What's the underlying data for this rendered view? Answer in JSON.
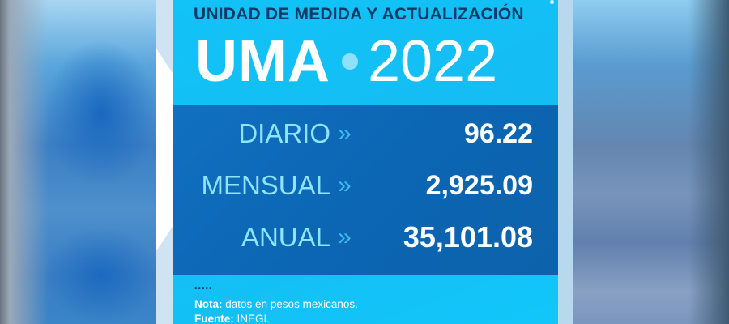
{
  "header": {
    "subtitle": "UNIDAD DE MEDIDA Y ACTUALIZACIÓN",
    "title_main": "UMA",
    "title_year": "2022"
  },
  "rows": [
    {
      "label": "DIARIO",
      "arrow": "»",
      "value": "96.22"
    },
    {
      "label": "MENSUAL",
      "arrow": "»",
      "value": "2,925.09"
    },
    {
      "label": "ANUAL",
      "arrow": "»",
      "value": "35,101.08"
    }
  ],
  "footer": {
    "dots": "•••••",
    "note_label": "Nota:",
    "note_text": " datos en pesos mexicanos.",
    "source_label": "Fuente:",
    "source_text": " INEGI."
  },
  "colors": {
    "panel_cyan": "#14bdf4",
    "box_blue": "#0c66b4",
    "label_cyan": "#8ee4fa",
    "subtitle_navy": "#123a66"
  }
}
